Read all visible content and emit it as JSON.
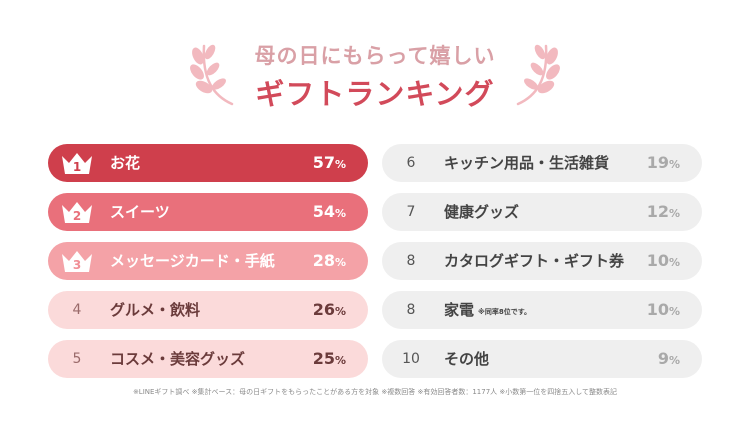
{
  "header": {
    "title_line1": "母の日にもらって嬉しい",
    "title_line2": "ギフトランキング"
  },
  "colors": {
    "rank1": "#cf3f4c",
    "rank2": "#e9707b",
    "rank3": "#f4a2a7",
    "rank4_5": "#fbdada",
    "rank6_10": "#efefef",
    "title_accent": "#d24a5a",
    "title_soft": "#d9a0a6"
  },
  "chart_data": {
    "type": "table",
    "title": "母の日にもらって嬉しい ギフトランキング",
    "columns": [
      "rank",
      "item",
      "percent"
    ],
    "rows": [
      {
        "rank": "1",
        "item": "お花",
        "value": "57",
        "unit": "%"
      },
      {
        "rank": "2",
        "item": "スイーツ",
        "value": "54",
        "unit": "%"
      },
      {
        "rank": "3",
        "item": "メッセージカード・手紙",
        "value": "28",
        "unit": "%"
      },
      {
        "rank": "4",
        "item": "グルメ・飲料",
        "value": "26",
        "unit": "%"
      },
      {
        "rank": "5",
        "item": "コスメ・美容グッズ",
        "value": "25",
        "unit": "%"
      },
      {
        "rank": "6",
        "item": "キッチン用品・生活雑貨",
        "value": "19",
        "unit": "%"
      },
      {
        "rank": "7",
        "item": "健康グッズ",
        "value": "12",
        "unit": "%"
      },
      {
        "rank": "8",
        "item": "カタログギフト・ギフト券",
        "value": "10",
        "unit": "%"
      },
      {
        "rank": "8",
        "item": "家電",
        "note": "※同率8位です。",
        "value": "10",
        "unit": "%"
      },
      {
        "rank": "10",
        "item": "その他",
        "value": "9",
        "unit": "%"
      }
    ]
  },
  "footnote": "※LINEギフト調べ ※集計ベース：母の日ギフトをもらったことがある方を対象 ※複数回答 ※有効回答者数：1177人 ※小数第一位を四捨五入して整数表記"
}
